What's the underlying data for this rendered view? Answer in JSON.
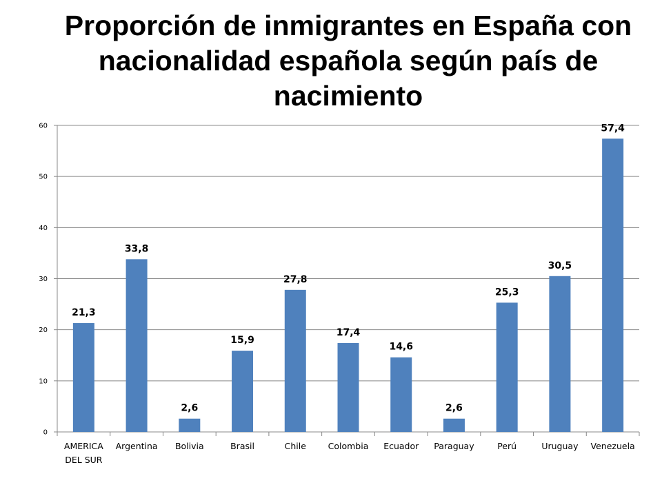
{
  "chart_data": {
    "type": "bar",
    "title_lines": [
      "Proporción de inmigrantes en España con",
      "nacionalidad española según país de",
      "nacimiento"
    ],
    "categories": [
      [
        "AMERICA",
        "DEL SUR"
      ],
      [
        "Argentina"
      ],
      [
        "Bolivia"
      ],
      [
        "Brasil"
      ],
      [
        "Chile"
      ],
      [
        "Colombia"
      ],
      [
        "Ecuador"
      ],
      [
        "Paraguay"
      ],
      [
        "Perú"
      ],
      [
        "Uruguay"
      ],
      [
        "Venezuela"
      ]
    ],
    "values": [
      21.3,
      33.8,
      2.6,
      15.9,
      27.8,
      17.4,
      14.6,
      2.6,
      25.3,
      30.5,
      57.4
    ],
    "value_labels": [
      "21,3",
      "33,8",
      "2,6",
      "15,9",
      "27,8",
      "17,4",
      "14,6",
      "2,6",
      "25,3",
      "30,5",
      "57,4"
    ],
    "ylim": [
      0,
      60
    ],
    "yticks": [
      "0",
      "10",
      "20",
      "30",
      "40",
      "50",
      "60"
    ],
    "grid": true,
    "bar_color": "#4f81bd",
    "grid_color": "#888888"
  }
}
